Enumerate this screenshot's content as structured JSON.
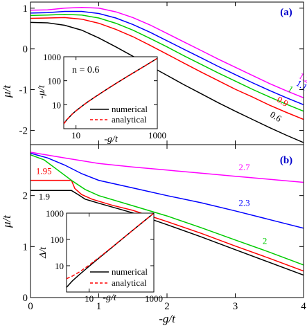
{
  "chart_data": [
    {
      "type": "line",
      "panel_label": "(a)",
      "xlim": [
        0,
        4
      ],
      "ylim": [
        -2.35,
        1.15
      ],
      "ylabel": "μ/t",
      "yticks": [
        -2,
        -1,
        0,
        1
      ],
      "ytick_labels": [
        "-2",
        "-1",
        "0",
        "1"
      ],
      "xticks": [
        0,
        1,
        2,
        3,
        4
      ],
      "grid": false,
      "series": [
        {
          "name": "0.6",
          "color": "#000000",
          "x": [
            0,
            0.25,
            0.5,
            0.75,
            1.0,
            1.25,
            1.5,
            1.75,
            2.0,
            2.25,
            2.5,
            2.75,
            3.0,
            3.25,
            3.5,
            3.75,
            4.0
          ],
          "y": [
            0.65,
            0.64,
            0.58,
            0.46,
            0.27,
            0.05,
            -0.18,
            -0.42,
            -0.65,
            -0.88,
            -1.1,
            -1.32,
            -1.53,
            -1.73,
            -1.93,
            -2.12,
            -2.3
          ]
        },
        {
          "name": "0.9",
          "color": "#ff0000",
          "x": [
            0,
            0.25,
            0.5,
            0.75,
            1.0,
            1.25,
            1.5,
            1.75,
            2.0,
            2.25,
            2.5,
            2.75,
            3.0,
            3.25,
            3.5,
            3.75,
            4.0
          ],
          "y": [
            0.75,
            0.76,
            0.77,
            0.73,
            0.63,
            0.48,
            0.3,
            0.09,
            -0.13,
            -0.35,
            -0.57,
            -0.78,
            -0.99,
            -1.18,
            -1.38,
            -1.56,
            -1.73
          ]
        },
        {
          "name": "1",
          "color": "#00cc00",
          "x": [
            0,
            0.25,
            0.5,
            0.75,
            1.0,
            1.25,
            1.5,
            1.75,
            2.0,
            2.25,
            2.5,
            2.75,
            3.0,
            3.25,
            3.5,
            3.75,
            4.0
          ],
          "y": [
            0.82,
            0.83,
            0.85,
            0.83,
            0.76,
            0.63,
            0.46,
            0.26,
            0.05,
            -0.17,
            -0.38,
            -0.59,
            -0.79,
            -0.99,
            -1.18,
            -1.36,
            -1.53
          ]
        },
        {
          "name": "1.1",
          "color": "#0000ff",
          "x": [
            0,
            0.25,
            0.5,
            0.75,
            1.0,
            1.25,
            1.5,
            1.75,
            2.0,
            2.25,
            2.5,
            2.75,
            3.0,
            3.25,
            3.5,
            3.75,
            4.0
          ],
          "y": [
            0.88,
            0.89,
            0.92,
            0.92,
            0.87,
            0.76,
            0.6,
            0.41,
            0.2,
            -0.01,
            -0.22,
            -0.43,
            -0.63,
            -0.83,
            -1.02,
            -1.2,
            -1.37
          ]
        },
        {
          "name": "1.2",
          "color": "#ff00ff",
          "x": [
            0,
            0.25,
            0.5,
            0.75,
            1.0,
            1.25,
            1.5,
            1.75,
            2.0,
            2.25,
            2.5,
            2.75,
            3.0,
            3.25,
            3.5,
            3.75,
            4.0
          ],
          "y": [
            0.95,
            0.96,
            1.0,
            1.02,
            1.0,
            0.91,
            0.77,
            0.59,
            0.38,
            0.17,
            -0.04,
            -0.25,
            -0.45,
            -0.65,
            -0.85,
            -1.03,
            -1.2
          ]
        }
      ],
      "curve_labels": [
        {
          "text": "0.6",
          "color": "#000000",
          "x": 3.5,
          "y": -1.65,
          "rotate": 32
        },
        {
          "text": "0.9",
          "color": "#ff0000",
          "x": 3.6,
          "y": -1.28,
          "rotate": 32
        },
        {
          "text": "1",
          "color": "#00cc00",
          "x": 3.76,
          "y": -1.02,
          "rotate": 32
        },
        {
          "text": "1.1",
          "color": "#0000ff",
          "x": 3.88,
          "y": -0.88,
          "rotate": 32
        },
        {
          "text": "1.2",
          "color": "#ff00ff",
          "x": 3.92,
          "y": -0.7,
          "rotate": 32
        }
      ]
    },
    {
      "type": "line",
      "panel_label": "(b)",
      "xlim": [
        0,
        4
      ],
      "ylim": [
        0,
        3
      ],
      "xlabel": "-g/t",
      "ylabel": "μ/t",
      "xticks": [
        0,
        1,
        2,
        3,
        4
      ],
      "xtick_labels": [
        "0",
        "1",
        "2",
        "3",
        "4"
      ],
      "yticks": [
        0,
        1,
        2
      ],
      "ytick_labels": [
        "0",
        "1",
        "2"
      ],
      "grid": false,
      "series": [
        {
          "name": "1.9",
          "color": "#000000",
          "x": [
            0,
            0.3,
            0.6,
            0.7,
            0.8,
            1.0,
            1.5,
            2.0,
            2.5,
            3.0,
            3.5,
            4.0
          ],
          "y": [
            2.1,
            2.1,
            2.1,
            2.02,
            1.93,
            1.85,
            1.66,
            1.43,
            1.19,
            0.94,
            0.69,
            0.44
          ]
        },
        {
          "name": "1.95",
          "color": "#ff0000",
          "x": [
            0,
            0.3,
            0.6,
            0.65,
            0.75,
            0.9,
            1.2,
            1.5,
            2.0,
            2.5,
            3.0,
            3.5,
            4.0
          ],
          "y": [
            2.3,
            2.3,
            2.3,
            2.14,
            2.02,
            1.93,
            1.81,
            1.71,
            1.49,
            1.26,
            1.01,
            0.77,
            0.52
          ]
        },
        {
          "name": "2",
          "color": "#00cc00",
          "x": [
            0,
            0.2,
            0.4,
            0.6,
            0.8,
            1.0,
            1.5,
            2.0,
            2.5,
            3.0,
            3.5,
            4.0
          ],
          "y": [
            2.8,
            2.7,
            2.5,
            2.3,
            2.12,
            2.0,
            1.8,
            1.6,
            1.37,
            1.13,
            0.89,
            0.64
          ]
        },
        {
          "name": "2.3",
          "color": "#0000ff",
          "x": [
            0,
            0.25,
            0.5,
            0.75,
            1.0,
            1.5,
            2.0,
            2.5,
            3.0,
            3.5,
            4.0
          ],
          "y": [
            2.83,
            2.74,
            2.6,
            2.43,
            2.3,
            2.15,
            2.0,
            1.86,
            1.7,
            1.53,
            1.36
          ]
        },
        {
          "name": "2.7",
          "color": "#ff00ff",
          "x": [
            0,
            0.5,
            1.0,
            1.5,
            2.0,
            2.5,
            3.0,
            3.5,
            4.0
          ],
          "y": [
            2.85,
            2.74,
            2.63,
            2.56,
            2.5,
            2.44,
            2.38,
            2.32,
            2.26
          ]
        }
      ],
      "curve_labels": [
        {
          "text": "1.95",
          "color": "#ff0000",
          "x": 0.08,
          "y": 2.42,
          "rotate": 0
        },
        {
          "text": "1.9",
          "color": "#000000",
          "x": 0.12,
          "y": 1.92,
          "rotate": 0
        },
        {
          "text": "2",
          "color": "#00cc00",
          "x": 3.4,
          "y": 1.05,
          "rotate": 0
        },
        {
          "text": "2.3",
          "color": "#0000ff",
          "x": 3.05,
          "y": 1.8,
          "rotate": 0
        },
        {
          "text": "2.7",
          "color": "#ff00ff",
          "x": 3.05,
          "y": 2.5,
          "rotate": 0
        }
      ]
    },
    {
      "type": "line",
      "role": "inset of panel (a)",
      "annotation": "n = 0.6",
      "xscale": "log",
      "yscale": "log",
      "xlim": [
        5,
        1000
      ],
      "ylim": [
        1,
        1000
      ],
      "xlabel": "-g/t",
      "ylabel": "-μ/t",
      "xticks": [
        10,
        1000
      ],
      "xtick_labels": [
        "10",
        "1000"
      ],
      "yticks": [
        10,
        100,
        1000
      ],
      "ytick_labels": [
        "10",
        "100",
        "1000"
      ],
      "legend": {
        "position": "bottom-right",
        "entries": [
          "numerical",
          "analytical"
        ]
      },
      "series": [
        {
          "name": "numerical",
          "color": "#000000",
          "style": "solid",
          "x": [
            5,
            6,
            8,
            10,
            15,
            20,
            30,
            50,
            100,
            200,
            500,
            1000
          ],
          "y": [
            1.6,
            2.4,
            4,
            5.6,
            9.5,
            13.5,
            21.5,
            38,
            80,
            165,
            420,
            860
          ]
        },
        {
          "name": "analytical",
          "color": "#ff0000",
          "style": "dashed",
          "x": [
            5,
            6,
            8,
            10,
            15,
            20,
            30,
            50,
            100,
            200,
            500,
            1000
          ],
          "y": [
            1.6,
            2.4,
            4,
            5.6,
            9.5,
            13.5,
            21.5,
            38,
            80,
            165,
            420,
            860
          ]
        }
      ]
    },
    {
      "type": "line",
      "role": "inset of panel (b)",
      "xscale": "log",
      "yscale": "log",
      "xlim": [
        2,
        1000
      ],
      "ylim": [
        1,
        1000
      ],
      "xlabel": "-g/t",
      "ylabel": "Δ/t",
      "xticks": [
        10,
        1000
      ],
      "xtick_labels": [
        "10",
        "1000"
      ],
      "yticks": [
        10,
        100,
        1000
      ],
      "ytick_labels": [
        "10",
        "100",
        "1000"
      ],
      "legend": {
        "position": "bottom-right",
        "entries": [
          "numerical",
          "analytical"
        ]
      },
      "series": [
        {
          "name": "numerical",
          "color": "#000000",
          "style": "solid",
          "x": [
            2,
            3,
            5,
            10,
            20,
            50,
            100,
            200,
            500,
            1000
          ],
          "y": [
            1.5,
            2.6,
            4.6,
            9.5,
            19.5,
            49,
            99,
            199,
            499,
            999
          ]
        },
        {
          "name": "analytical",
          "color": "#ff0000",
          "style": "dashed",
          "x": [
            2,
            3,
            5,
            10,
            20,
            50,
            100,
            200,
            500,
            1000
          ],
          "y": [
            3.2,
            4,
            5.8,
            10.5,
            20.3,
            49.9,
            99.9,
            199.9,
            499.9,
            999.9
          ]
        }
      ]
    }
  ]
}
